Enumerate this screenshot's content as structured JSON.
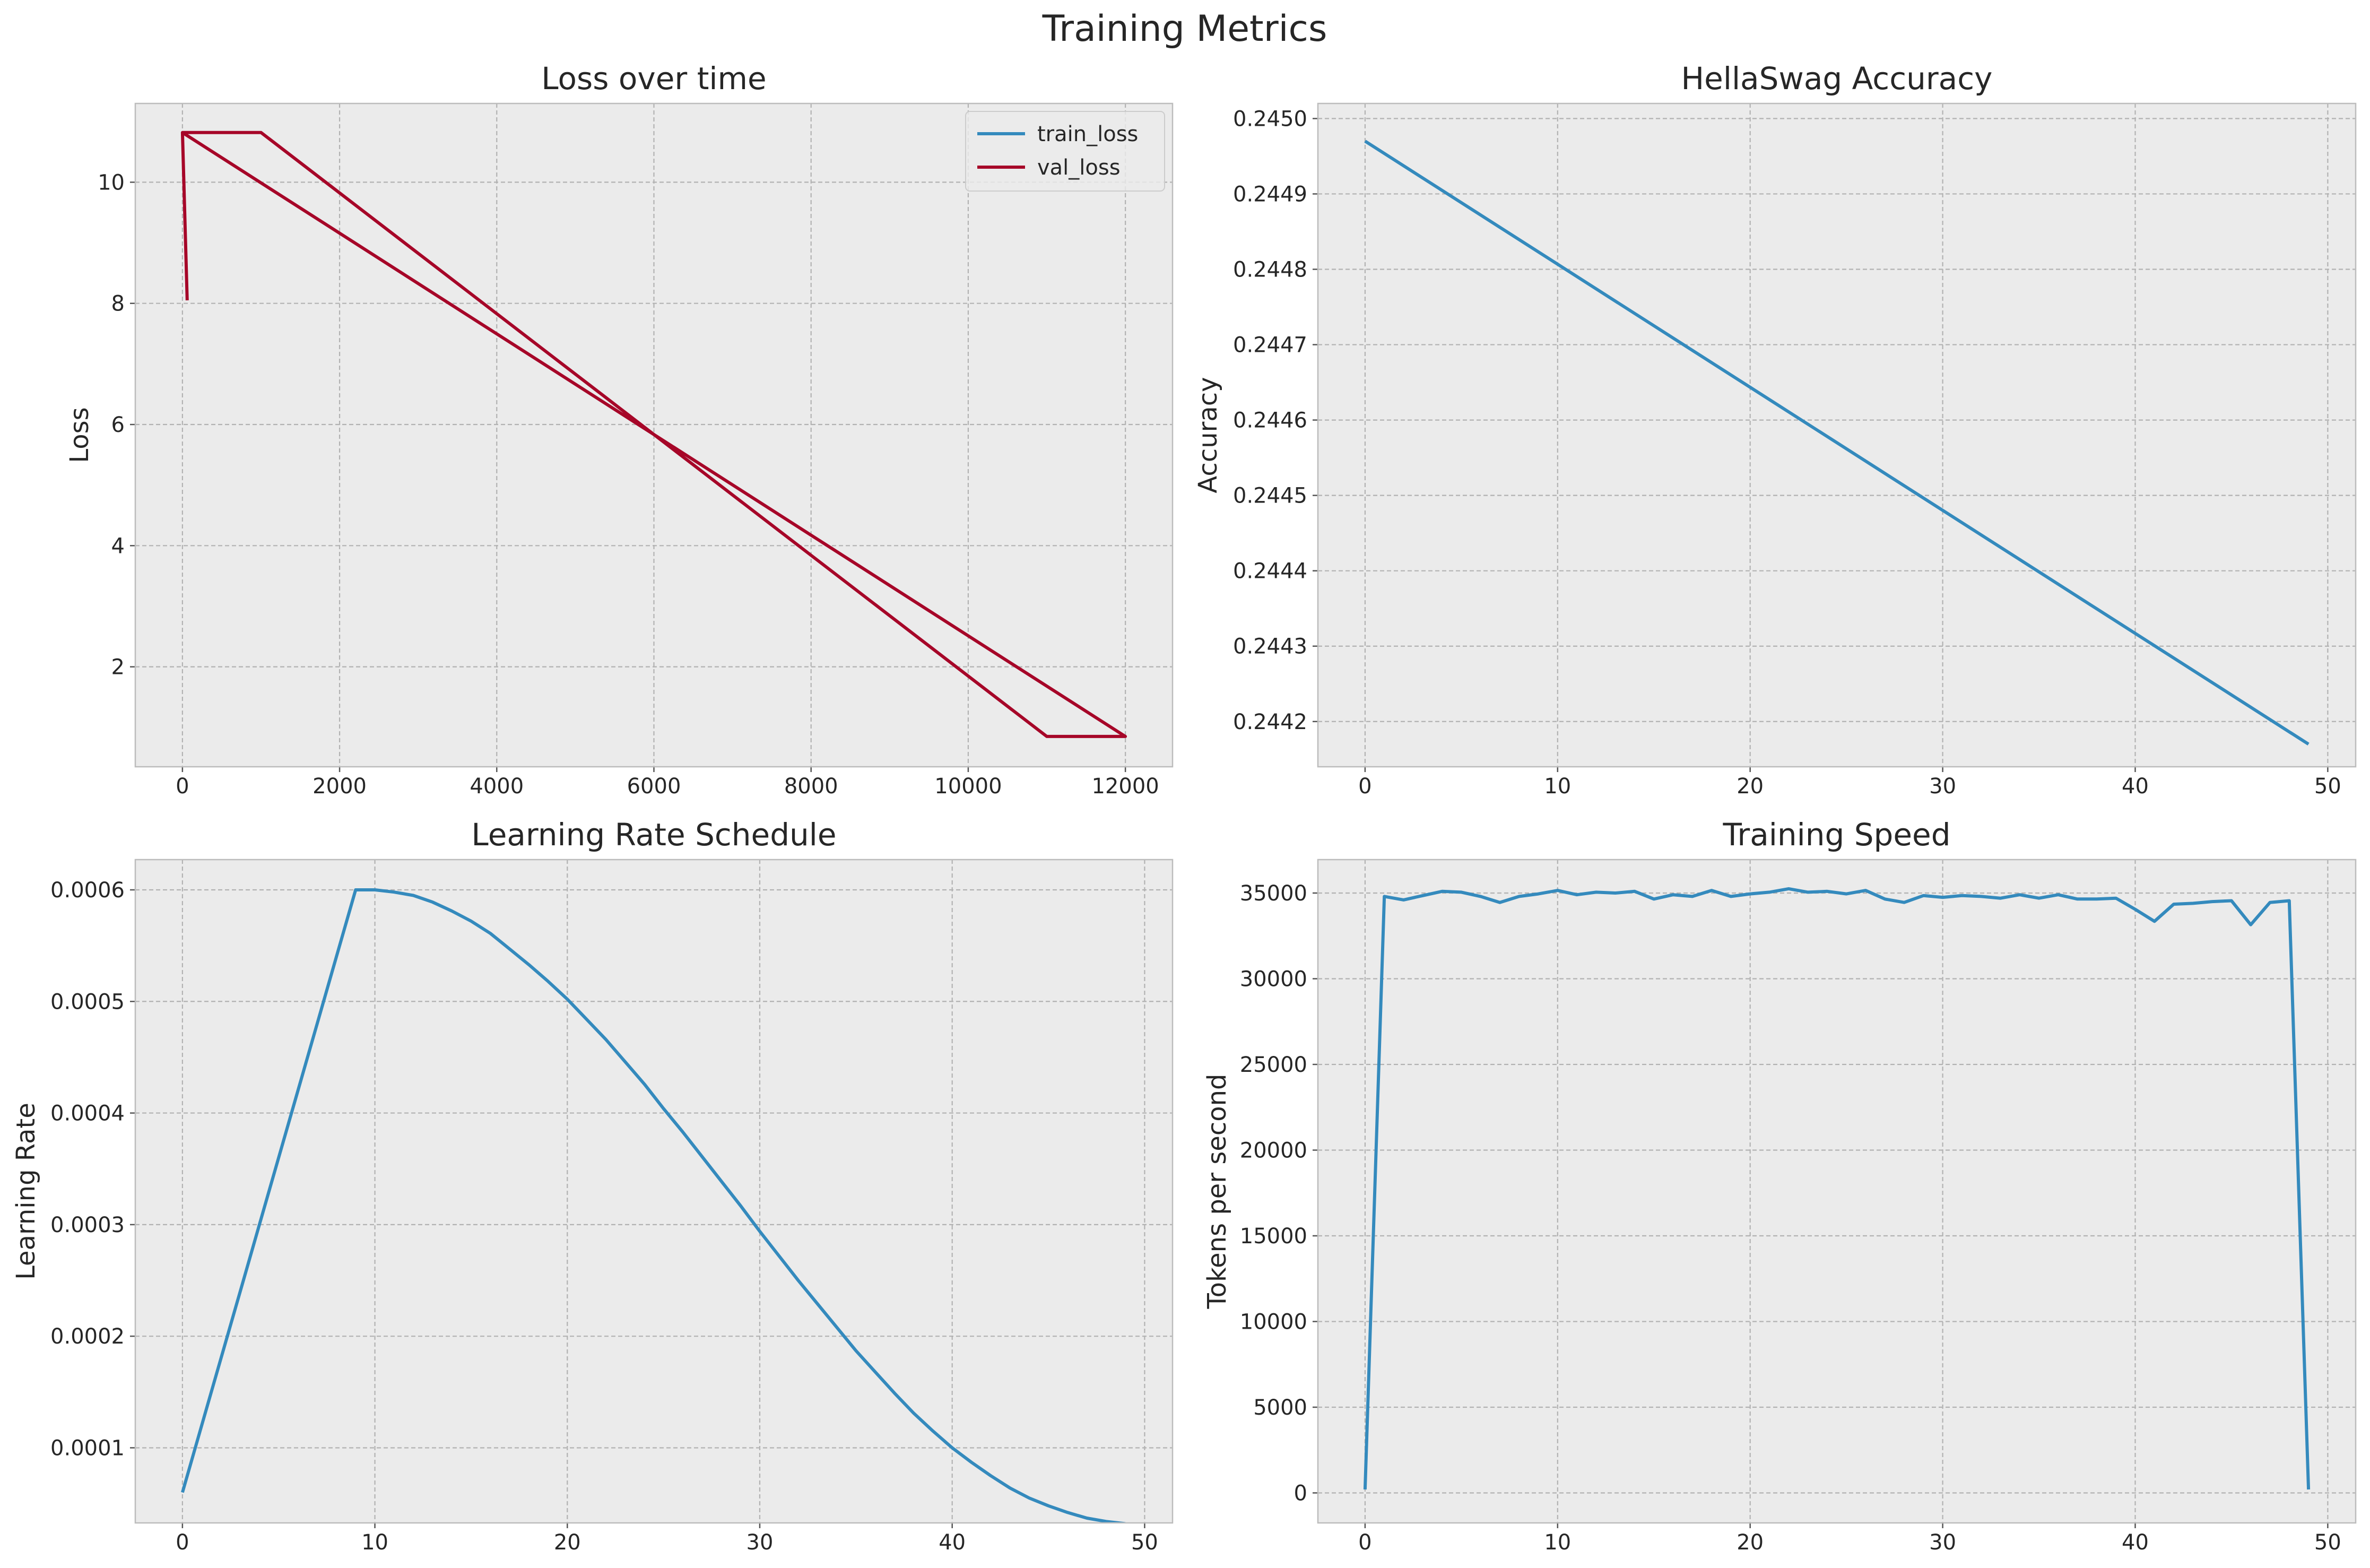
{
  "figure": {
    "title": "Training Metrics"
  },
  "chart_data": [
    {
      "type": "line",
      "title": "Loss over time",
      "xlabel": "",
      "ylabel": "Loss",
      "xlim": [
        -600,
        12600
      ],
      "ylim": [
        0.35,
        11.3
      ],
      "xticks": [
        0,
        2000,
        4000,
        6000,
        8000,
        10000,
        12000
      ],
      "xtick_labels": [
        "0",
        "2000",
        "4000",
        "6000",
        "8000",
        "10000",
        "12000"
      ],
      "yticks": [
        2,
        4,
        6,
        8,
        10
      ],
      "ytick_labels": [
        "2",
        "4",
        "6",
        "8",
        "10"
      ],
      "grid": true,
      "legend": "top-right",
      "series": [
        {
          "name": "train_loss",
          "color": "#348ABD",
          "points": []
        },
        {
          "name": "val_loss",
          "color": "#A60628",
          "points": [
            [
              60,
              8.05
            ],
            [
              0,
              10.82
            ],
            [
              1000,
              10.82
            ],
            [
              11000,
              0.85
            ],
            [
              12000,
              0.85
            ],
            [
              0,
              10.82
            ]
          ]
        }
      ]
    },
    {
      "type": "line",
      "title": "HellaSwag Accuracy",
      "xlabel": "",
      "ylabel": "Accuracy",
      "xlim": [
        -2.45,
        51.45
      ],
      "ylim": [
        0.24414,
        0.24502
      ],
      "xticks": [
        0,
        10,
        20,
        30,
        40,
        50
      ],
      "xtick_labels": [
        "0",
        "10",
        "20",
        "30",
        "40",
        "50"
      ],
      "yticks": [
        0.2442,
        0.2443,
        0.2444,
        0.2445,
        0.2446,
        0.2447,
        0.2448,
        0.2449,
        0.245
      ],
      "ytick_labels": [
        "0.2442",
        "0.2443",
        "0.2444",
        "0.2445",
        "0.2446",
        "0.2447",
        "0.2448",
        "0.2449",
        "0.2450"
      ],
      "grid": true,
      "series": [
        {
          "color": "#348ABD",
          "points": [
            [
              0,
              0.24497
            ],
            [
              49,
              0.24417
            ]
          ]
        }
      ]
    },
    {
      "type": "line",
      "title": "Learning Rate Schedule",
      "xlabel": "",
      "ylabel": "Learning Rate",
      "xlim": [
        -2.45,
        51.45
      ],
      "ylim": [
        3.27e-05,
        0.0006271
      ],
      "xticks": [
        0,
        10,
        20,
        30,
        40,
        50
      ],
      "xtick_labels": [
        "0",
        "10",
        "20",
        "30",
        "40",
        "50"
      ],
      "yticks": [
        0.0001,
        0.0002,
        0.0003,
        0.0004,
        0.0005,
        0.0006
      ],
      "ytick_labels": [
        "0.0001",
        "0.0002",
        "0.0003",
        "0.0004",
        "0.0005",
        "0.0006"
      ],
      "grid": true,
      "series": [
        {
          "color": "#348ABD",
          "x": [
            0,
            1,
            2,
            3,
            4,
            5,
            6,
            7,
            8,
            9,
            10,
            11,
            12,
            13,
            14,
            15,
            16,
            17,
            18,
            19,
            20,
            21,
            22,
            23,
            24,
            25,
            26,
            27,
            28,
            29,
            30,
            31,
            32,
            33,
            34,
            35,
            36,
            37,
            38,
            39,
            40,
            41,
            42,
            43,
            44,
            45,
            46,
            47,
            48,
            49
          ],
          "values": [
            6e-05,
            0.00012,
            0.00018,
            0.00024,
            0.0003,
            0.00036,
            0.00042,
            0.00048,
            0.00054,
            0.0006,
            0.0006,
            0.000598,
            0.000595,
            0.000589,
            0.000581,
            0.000572,
            0.000561,
            0.000547,
            0.000533,
            0.000518,
            0.000502,
            0.000484,
            0.000466,
            0.000446,
            0.000426,
            0.000404,
            0.000383,
            0.000361,
            0.000339,
            0.000317,
            0.000294,
            0.000272,
            0.00025,
            0.000229,
            0.000208,
            0.000187,
            0.000168,
            0.000149,
            0.000131,
            0.000115,
            0.0001,
            8.7e-05,
            7.5e-05,
            6.4e-05,
            5.5e-05,
            4.8e-05,
            4.2e-05,
            3.7e-05,
            3.4e-05,
            3.2e-05
          ]
        }
      ]
    },
    {
      "type": "line",
      "title": "Training Speed",
      "xlabel": "",
      "ylabel": "Tokens per second",
      "xlim": [
        -2.45,
        51.45
      ],
      "ylim": [
        -1750,
        36950
      ],
      "xticks": [
        0,
        10,
        20,
        30,
        40,
        50
      ],
      "xtick_labels": [
        "0",
        "10",
        "20",
        "30",
        "40",
        "50"
      ],
      "yticks": [
        0,
        5000,
        10000,
        15000,
        20000,
        25000,
        30000,
        35000
      ],
      "ytick_labels": [
        "0",
        "5000",
        "10000",
        "15000",
        "20000",
        "25000",
        "30000",
        "35000"
      ],
      "grid": true,
      "series": [
        {
          "color": "#348ABD",
          "x": [
            0,
            1,
            2,
            3,
            4,
            5,
            6,
            7,
            8,
            9,
            10,
            11,
            12,
            13,
            14,
            15,
            16,
            17,
            18,
            19,
            20,
            21,
            22,
            23,
            24,
            25,
            26,
            27,
            28,
            29,
            30,
            31,
            32,
            33,
            34,
            35,
            36,
            37,
            38,
            39,
            40,
            41,
            42,
            43,
            44,
            45,
            46,
            47,
            48,
            49
          ],
          "values": [
            200,
            34800,
            34600,
            34850,
            35100,
            35050,
            34800,
            34450,
            34800,
            34950,
            35150,
            34900,
            35050,
            35000,
            35100,
            34650,
            34900,
            34800,
            35150,
            34800,
            34950,
            35050,
            35250,
            35050,
            35100,
            34950,
            35150,
            34650,
            34450,
            34850,
            34750,
            34850,
            34800,
            34700,
            34900,
            34700,
            34900,
            34650,
            34650,
            34700,
            34050,
            33350,
            34350,
            34400,
            34500,
            34550,
            33150,
            34450,
            34550,
            200
          ]
        }
      ]
    }
  ]
}
